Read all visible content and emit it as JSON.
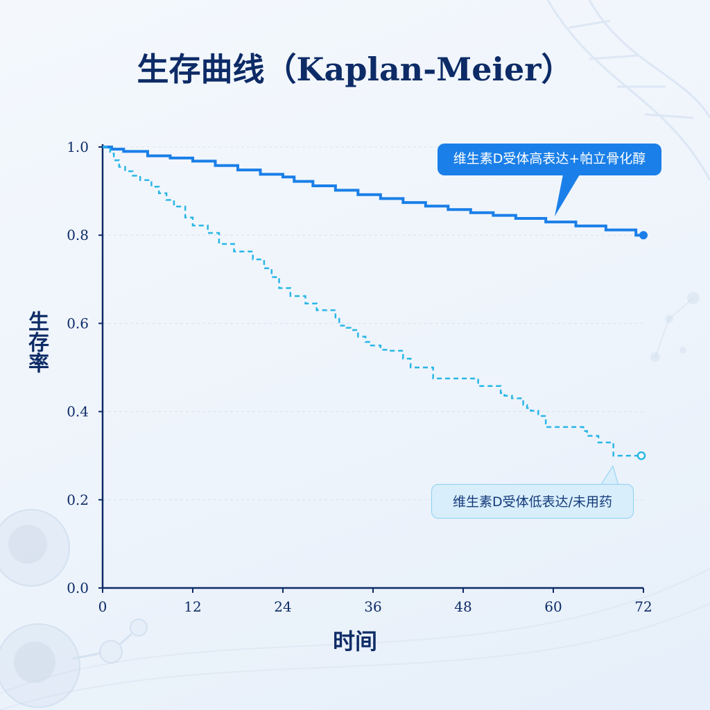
{
  "title": "生存曲线（Kaplan-Meier）",
  "colors": {
    "axis": "#0d2b66",
    "high_series": "#1a7fe8",
    "low_series": "#29b6e6",
    "grid": "#d7e1ee"
  },
  "chart_data": {
    "type": "line",
    "title": "生存曲线（Kaplan-Meier）",
    "xlabel": "时间",
    "ylabel": "生存率",
    "xlim": [
      0,
      72
    ],
    "ylim": [
      0,
      1.0
    ],
    "xticks": [
      "0",
      "12",
      "24",
      "36",
      "48",
      "60",
      "72"
    ],
    "yticks": [
      "0.0",
      "0.2",
      "0.4",
      "0.6",
      "0.8",
      "1.0"
    ],
    "grid": "horizontal dashed",
    "step": true,
    "series": [
      {
        "name": "维生素D受体高表达+帕立骨化醇",
        "style": "solid",
        "color": "#1a7fe8",
        "x": [
          0,
          1.2,
          2.8,
          6,
          9,
          12,
          15,
          18,
          21,
          24,
          25.5,
          28,
          31,
          34,
          37,
          40,
          43,
          46,
          49,
          52,
          55,
          59,
          63,
          67,
          71,
          72
        ],
        "y": [
          1.0,
          0.995,
          0.99,
          0.98,
          0.975,
          0.968,
          0.958,
          0.948,
          0.938,
          0.932,
          0.922,
          0.912,
          0.902,
          0.892,
          0.883,
          0.874,
          0.866,
          0.858,
          0.851,
          0.845,
          0.838,
          0.83,
          0.821,
          0.812,
          0.8,
          0.8
        ],
        "censor_marker": "filled-circle"
      },
      {
        "name": "维生素D受体低表达/未用药",
        "style": "dashed",
        "color": "#29b6e6",
        "x": [
          0,
          1,
          1.5,
          2.2,
          3,
          4,
          5,
          6.5,
          7.5,
          8.5,
          9.5,
          11,
          12,
          14,
          15.5,
          17.5,
          20,
          21.5,
          22.5,
          23.5,
          25,
          27,
          28.5,
          31,
          31.5,
          32.5,
          33,
          34,
          35,
          35.5,
          37,
          38,
          40,
          41,
          44,
          45,
          48,
          50,
          53,
          53.5,
          54.5,
          56,
          56.5,
          57,
          58,
          59,
          64,
          64.5,
          66,
          68,
          69,
          72
        ],
        "y": [
          1.0,
          0.985,
          0.97,
          0.955,
          0.945,
          0.935,
          0.925,
          0.91,
          0.895,
          0.88,
          0.865,
          0.84,
          0.822,
          0.805,
          0.78,
          0.763,
          0.745,
          0.725,
          0.705,
          0.68,
          0.662,
          0.645,
          0.63,
          0.61,
          0.595,
          0.59,
          0.585,
          0.57,
          0.558,
          0.55,
          0.54,
          0.538,
          0.52,
          0.5,
          0.475,
          0.475,
          0.475,
          0.458,
          0.442,
          0.436,
          0.43,
          0.415,
          0.408,
          0.402,
          0.39,
          0.365,
          0.356,
          0.345,
          0.33,
          0.3,
          0.3,
          0.3
        ],
        "censor_marker": "hollow-circle"
      }
    ],
    "annotations": [
      {
        "text": "维生素D受体高表达+帕立骨化醇",
        "target_series": 0
      },
      {
        "text": "维生素D受体低表达/未用药",
        "target_series": 1
      }
    ]
  }
}
